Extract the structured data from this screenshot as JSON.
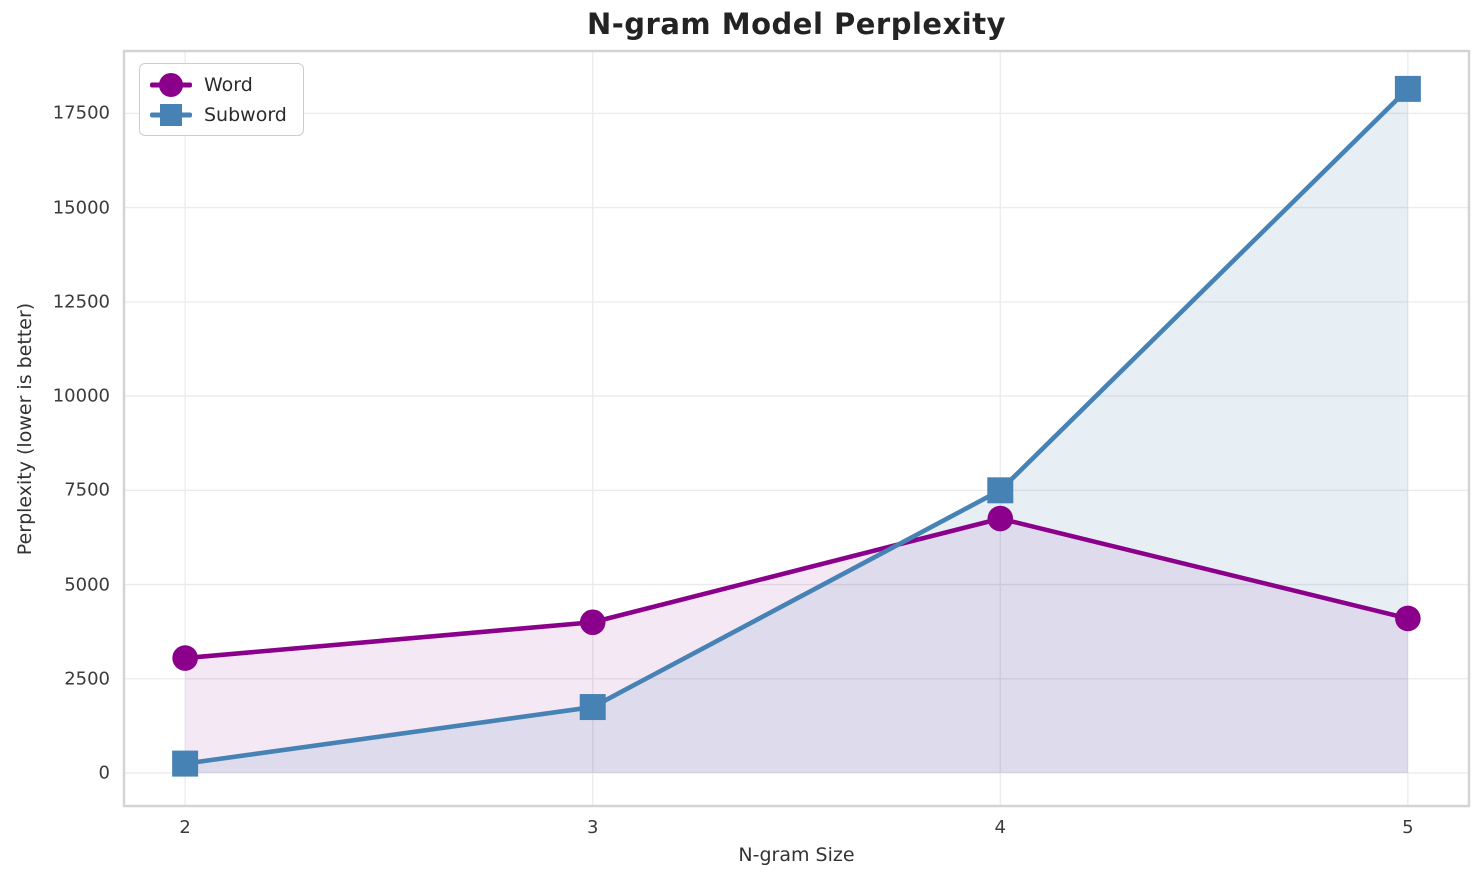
{
  "chart": {
    "title": "N-gram Model Perplexity",
    "xlabel": "N-gram Size",
    "ylabel": "Perplexity (lower is better)"
  },
  "chart_data": {
    "type": "line",
    "title": "N-gram Model Perplexity",
    "xlabel": "N-gram Size",
    "ylabel": "Perplexity (lower is better)",
    "x": [
      2,
      3,
      4,
      5
    ],
    "series": [
      {
        "name": "Word",
        "values": [
          3050,
          4000,
          6750,
          4100
        ],
        "color": "#8B008B",
        "marker": "circle",
        "fill_to_zero": true,
        "fill_opacity": 0.09
      },
      {
        "name": "Subword",
        "values": [
          250,
          1750,
          7500,
          18150
        ],
        "color": "#4682B4",
        "marker": "square",
        "fill_to_zero": true,
        "fill_opacity": 0.13
      }
    ],
    "xticks": [
      2,
      3,
      4,
      5
    ],
    "yticks": [
      0,
      2500,
      5000,
      7500,
      10000,
      12500,
      15000,
      17500
    ],
    "xlim": [
      1.85,
      5.15
    ],
    "ylim": [
      -875,
      19155
    ],
    "grid": true,
    "legend_position": "upper left",
    "colors": {
      "grid": "#EBEBEB",
      "spine": "#D4D4D4",
      "tick_text": "#3b3b3b",
      "title_text": "#232323"
    }
  }
}
